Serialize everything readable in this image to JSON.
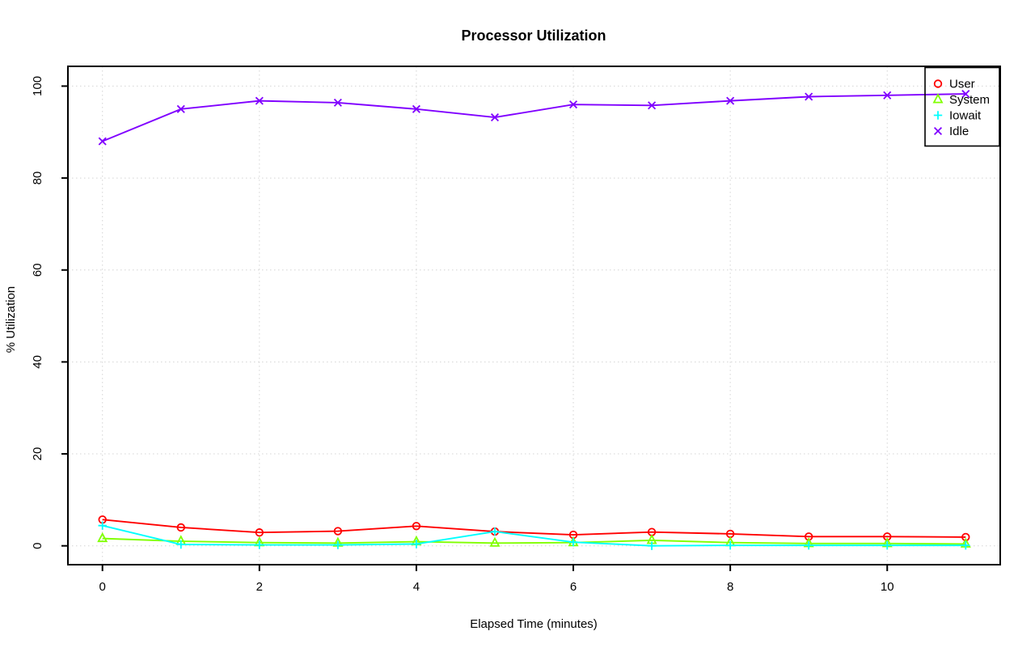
{
  "chart_data": {
    "type": "line",
    "title": "Processor Utilization",
    "xlabel": "Elapsed Time (minutes)",
    "ylabel": "% Utilization",
    "x": [
      0,
      1,
      2,
      3,
      4,
      5,
      6,
      7,
      8,
      9,
      10,
      11
    ],
    "xlim": [
      -0.44,
      11.44
    ],
    "ylim": [
      -4.1,
      104.3
    ],
    "x_ticks": [
      0,
      2,
      4,
      6,
      8,
      10
    ],
    "y_ticks": [
      0,
      20,
      40,
      60,
      80,
      100
    ],
    "grid": true,
    "grid_color": "#d4d4d4",
    "axis_color": "#000000",
    "background": "#ffffff",
    "legend_position": "top-right",
    "series": [
      {
        "name": "User",
        "color": "#ff0000",
        "marker": "circle",
        "values": [
          5.7,
          4.0,
          2.9,
          3.2,
          4.3,
          3.1,
          2.4,
          3.0,
          2.6,
          2.0,
          2.0,
          1.9
        ]
      },
      {
        "name": "System",
        "color": "#80ff00",
        "marker": "triangle",
        "values": [
          1.6,
          1.0,
          0.7,
          0.6,
          0.9,
          0.6,
          0.7,
          1.2,
          0.7,
          0.5,
          0.5,
          0.4
        ]
      },
      {
        "name": "Iowait",
        "color": "#00ffff",
        "marker": "plus",
        "values": [
          4.4,
          0.3,
          0.2,
          0.2,
          0.4,
          3.1,
          0.8,
          0.0,
          0.1,
          0.1,
          0.1,
          0.1
        ]
      },
      {
        "name": "Idle",
        "color": "#8000ff",
        "marker": "x",
        "values": [
          88.0,
          95.0,
          96.8,
          96.4,
          95.0,
          93.2,
          96.0,
          95.8,
          96.8,
          97.7,
          98.0,
          98.3
        ]
      }
    ]
  }
}
